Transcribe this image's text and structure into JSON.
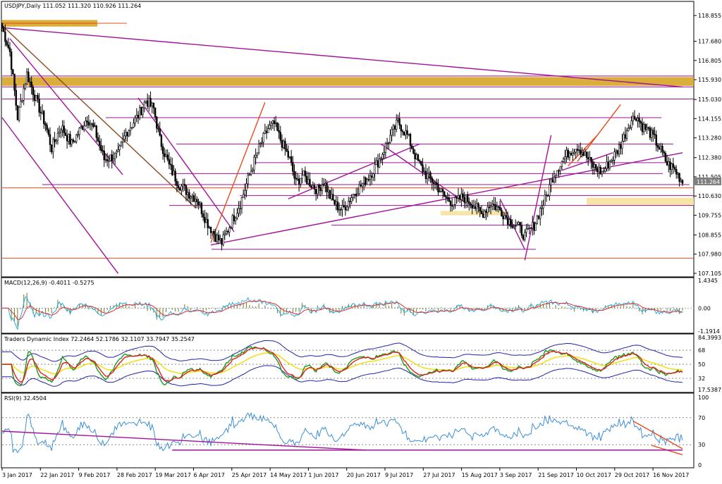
{
  "chart_data": [
    {
      "type": "candlestick",
      "title": "USDJPY,Daily  111.052 111.320 110.926 111.264",
      "last_price_label": "111.264",
      "ylim": [
        107.105,
        118.855
      ],
      "price_ticks": [
        "118.855",
        "117.680",
        "116.805",
        "115.930",
        "115.030",
        "114.155",
        "113.280",
        "112.380",
        "111.505",
        "110.630",
        "109.755",
        "108.855",
        "107.980",
        "107.105"
      ],
      "x_ticks": [
        "3 Jan 2017",
        "22 Jan 2017",
        "9 Feb 2017",
        "28 Feb 2017",
        "19 Mar 2017",
        "6 Apr 2017",
        "25 Apr 2017",
        "14 May 2017",
        "1 Jun 2017",
        "20 Jun 2017",
        "9 Jul 2017",
        "27 Jul 2017",
        "15 Aug 2017",
        "3 Sep 2017",
        "21 Sep 2017",
        "10 Oct 2017",
        "29 Oct 2017",
        "16 Nov 2017"
      ],
      "close_path": [
        [
          0,
          118.3
        ],
        [
          5,
          117.2
        ],
        [
          10,
          114.2
        ],
        [
          16,
          116.2
        ],
        [
          22,
          115.0
        ],
        [
          28,
          113.9
        ],
        [
          32,
          112.8
        ],
        [
          38,
          113.8
        ],
        [
          45,
          113.0
        ],
        [
          55,
          114.2
        ],
        [
          60,
          113.6
        ],
        [
          66,
          112.3
        ],
        [
          75,
          112.5
        ],
        [
          80,
          113.5
        ],
        [
          88,
          114.3
        ],
        [
          93,
          115.0
        ],
        [
          98,
          114.6
        ],
        [
          102,
          113.2
        ],
        [
          108,
          112.0
        ],
        [
          114,
          111.2
        ],
        [
          120,
          110.8
        ],
        [
          126,
          110.5
        ],
        [
          132,
          109.5
        ],
        [
          138,
          108.8
        ],
        [
          142,
          108.5
        ],
        [
          148,
          109.4
        ],
        [
          154,
          110.3
        ],
        [
          160,
          111.6
        ],
        [
          166,
          112.8
        ],
        [
          172,
          113.7
        ],
        [
          176,
          113.9
        ],
        [
          180,
          113.2
        ],
        [
          186,
          112.3
        ],
        [
          190,
          111.2
        ],
        [
          194,
          111.6
        ],
        [
          198,
          111.3
        ],
        [
          204,
          110.9
        ],
        [
          208,
          111.3
        ],
        [
          212,
          110.6
        ],
        [
          216,
          110.2
        ],
        [
          220,
          110.0
        ],
        [
          224,
          110.4
        ],
        [
          228,
          110.8
        ],
        [
          232,
          111.1
        ],
        [
          238,
          111.6
        ],
        [
          244,
          112.3
        ],
        [
          250,
          113.2
        ],
        [
          256,
          114.0
        ],
        [
          262,
          113.4
        ],
        [
          268,
          112.3
        ],
        [
          274,
          111.6
        ],
        [
          280,
          111.2
        ],
        [
          286,
          110.6
        ],
        [
          292,
          110.3
        ],
        [
          298,
          110.6
        ],
        [
          304,
          110.3
        ],
        [
          310,
          109.8
        ],
        [
          316,
          110.3
        ],
        [
          322,
          110.0
        ],
        [
          328,
          109.5
        ],
        [
          334,
          109.2
        ],
        [
          338,
          108.8
        ],
        [
          344,
          109.3
        ],
        [
          348,
          110.0
        ],
        [
          352,
          110.6
        ],
        [
          356,
          111.5
        ],
        [
          360,
          112.0
        ],
        [
          366,
          112.6
        ],
        [
          372,
          112.9
        ],
        [
          378,
          112.4
        ],
        [
          382,
          112.0
        ],
        [
          388,
          111.7
        ],
        [
          394,
          112.3
        ],
        [
          398,
          112.7
        ],
        [
          402,
          113.3
        ],
        [
          406,
          114.0
        ],
        [
          410,
          114.3
        ],
        [
          414,
          113.8
        ],
        [
          418,
          113.6
        ],
        [
          422,
          113.2
        ],
        [
          426,
          112.7
        ],
        [
          430,
          112.1
        ],
        [
          434,
          111.9
        ],
        [
          437,
          111.6
        ],
        [
          440,
          111.26
        ]
      ],
      "horizontal_levels": [
        114.2,
        113.0,
        112.15,
        111.65,
        111.15,
        110.7,
        110.2,
        109.3,
        108.2,
        107.8,
        112.5,
        115.05
      ]
    },
    {
      "type": "line",
      "title": "MACD(12,26,9) -0.4011 -0.5275",
      "ylim": [
        -1.1914,
        1.4345
      ],
      "tick_labels": [
        "1.4345",
        "0.00",
        "-1.1914"
      ]
    },
    {
      "type": "line",
      "title": "Traders Dynamic Index 72.2464 52.1786 32.1107 33.7947 35.2547",
      "ylim": [
        17.5387,
        84.3993
      ],
      "tick_labels": [
        "84.3993",
        "68",
        "50",
        "32",
        "17.5387"
      ],
      "levels": [
        68,
        50,
        32
      ]
    },
    {
      "type": "line",
      "title": "RSI(9) 32.4504",
      "ylim": [
        0,
        100
      ],
      "tick_labels": [
        "100",
        "70",
        "30",
        "0"
      ],
      "levels": [
        70,
        30
      ]
    }
  ],
  "colors": {
    "up": "#000000",
    "down": "#000000",
    "trend": "#a0129a",
    "resistance_zone": "#d4a017",
    "support_zone": "#f5e6a8",
    "orange_line": "#e74c1c",
    "brown_line": "#8b4a1f",
    "macd_main": "#2aa9d9",
    "macd_signal": "#e03030",
    "histogram": "#6a7f2a",
    "tdi_band": "#2222aa",
    "tdi_mid": "#f0e020",
    "tdi_fast": "#1a9a1a",
    "tdi_slow": "#e02020",
    "rsi_line": "#3a8fd8"
  }
}
